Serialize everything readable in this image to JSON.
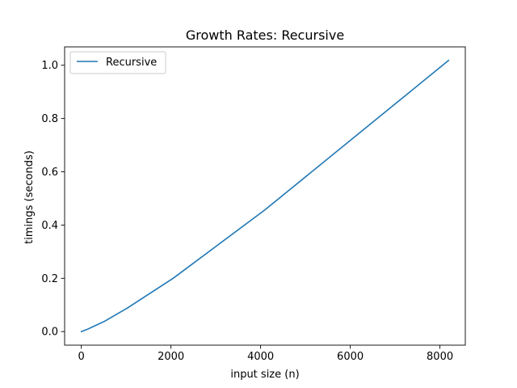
{
  "chart_data": {
    "type": "line",
    "title": "Growth Rates: Recursive",
    "xlabel": "input size (n)",
    "ylabel": "timings (seconds)",
    "xlim": [
      -372,
      8566
    ],
    "ylim": [
      -0.051,
      1.069
    ],
    "xticks": [
      0,
      2000,
      4000,
      6000,
      8000
    ],
    "xtick_labels": [
      "0",
      "2000",
      "4000",
      "6000",
      "8000"
    ],
    "yticks": [
      0.0,
      0.2,
      0.4,
      0.6,
      0.8,
      1.0
    ],
    "ytick_labels": [
      "0.0",
      "0.2",
      "0.4",
      "0.6",
      "0.8",
      "1.0"
    ],
    "grid": false,
    "legend": {
      "position": "top-left"
    },
    "series": [
      {
        "name": "Recursive",
        "color": "#1f77b4",
        "x": [
          1,
          64,
          128,
          256,
          512,
          1024,
          2048,
          4096,
          8192
        ],
        "y": [
          0.0,
          0.004,
          0.008,
          0.018,
          0.038,
          0.088,
          0.2,
          0.457,
          1.018
        ]
      }
    ]
  }
}
